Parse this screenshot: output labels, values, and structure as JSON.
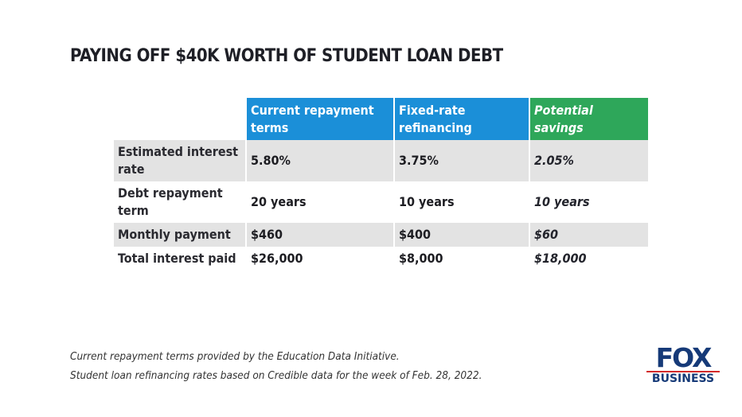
{
  "title": "PAYING OFF $40K WORTH OF STUDENT LOAN DEBT",
  "table": {
    "headers": [
      "",
      "Current repayment terms",
      "Fixed-rate refinancing",
      "Potential savings"
    ],
    "rows": [
      {
        "label": "Estimated interest rate",
        "current": "5.80%",
        "fixed": "3.75%",
        "savings": "2.05%"
      },
      {
        "label": "Debt repayment term",
        "current": "20 years",
        "fixed": "10 years",
        "savings": "10 years"
      },
      {
        "label": "Monthly payment",
        "current": "$460",
        "fixed": "$400",
        "savings": "$60"
      },
      {
        "label": "Total interest paid",
        "current": "$26,000",
        "fixed": "$8,000",
        "savings": "$18,000"
      }
    ]
  },
  "footnotes": [
    "Current repayment terms provided by the Education Data Initiative.",
    "Student loan refinancing rates based on Credible data for the week of Feb. 28, 2022."
  ],
  "logo": {
    "line1": "FOX",
    "line2": "BUSINESS"
  },
  "colors": {
    "header_blue": "#1b8fd8",
    "header_green": "#2ea75a",
    "row_gray": "#e3e3e3",
    "logo_navy": "#163a78"
  }
}
